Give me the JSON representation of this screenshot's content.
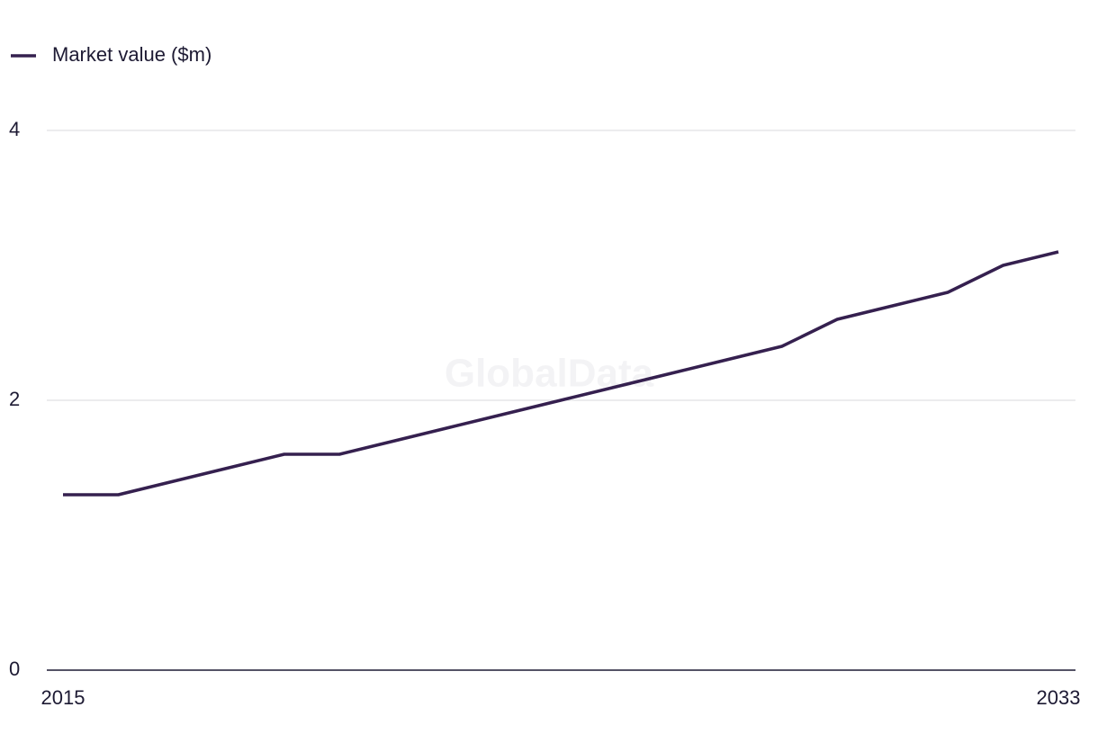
{
  "chart_data": {
    "type": "line",
    "watermark": "GlobalData",
    "x": [
      2015,
      2016,
      2017,
      2018,
      2019,
      2020,
      2021,
      2022,
      2023,
      2024,
      2025,
      2026,
      2027,
      2028,
      2029,
      2030,
      2031,
      2032,
      2033
    ],
    "series": [
      {
        "name": "Market value ($m)",
        "color": "#35204f",
        "values": [
          1.3,
          1.3,
          1.4,
          1.5,
          1.6,
          1.6,
          1.7,
          1.8,
          1.9,
          2.0,
          2.1,
          2.2,
          2.3,
          2.4,
          2.6,
          2.7,
          2.8,
          3.0,
          3.1
        ]
      }
    ],
    "xlim": [
      2015,
      2033
    ],
    "xticks": [
      2015,
      2033
    ],
    "ylim": [
      0,
      4
    ],
    "yticks": [
      0,
      2,
      4
    ],
    "grid": true,
    "legend": "top-left"
  }
}
